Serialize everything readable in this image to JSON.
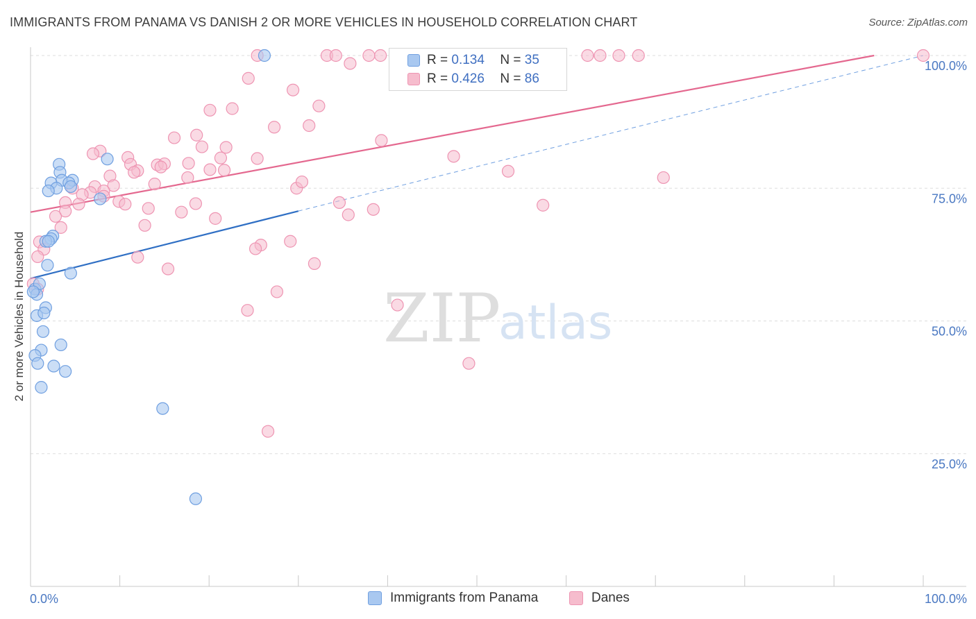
{
  "header": {
    "title": "IMMIGRANTS FROM PANAMA VS DANISH 2 OR MORE VEHICLES IN HOUSEHOLD CORRELATION CHART",
    "source": "Source: ZipAtlas.com"
  },
  "watermark": {
    "zip": "ZIP",
    "atlas": "atlas"
  },
  "legend_box": {
    "rows": [
      {
        "r_label": "R =",
        "r_value": "0.134",
        "n_label": "N =",
        "n_value": "35"
      },
      {
        "r_label": "R =",
        "r_value": "0.426",
        "n_label": "N =",
        "n_value": "86"
      }
    ]
  },
  "bottom_legend": {
    "items": [
      {
        "label": "Immigrants from Panama"
      },
      {
        "label": "Danes"
      }
    ]
  },
  "colors": {
    "blue_fill": "#a9c8f0",
    "blue_stroke": "#6f9fe0",
    "blue_line": "#2f6fc4",
    "pink_fill": "#f6bccd",
    "pink_stroke": "#ee94b2",
    "pink_line": "#e4688f",
    "grid": "#dddddd",
    "tick_text": "#4a78c2"
  },
  "chart_data": {
    "type": "scatter",
    "title": "IMMIGRANTS FROM PANAMA VS DANISH 2 OR MORE VEHICLES IN HOUSEHOLD CORRELATION CHART",
    "xlabel": "",
    "ylabel": "2 or more Vehicles in Household",
    "xlim": [
      0,
      100
    ],
    "ylim": [
      0,
      100
    ],
    "x_tick_labels": [
      "0.0%",
      "100.0%"
    ],
    "y_tick_values": [
      25,
      50,
      75,
      100
    ],
    "y_tick_labels": [
      "25.0%",
      "50.0%",
      "75.0%",
      "100.0%"
    ],
    "grid": true,
    "series": [
      {
        "name": "Immigrants from Panama",
        "color": "#a9c8f0",
        "r": 0.134,
        "n": 35,
        "trend": {
          "x0": 0,
          "y0": 58.0,
          "x1": 30,
          "y1": 70.7,
          "dashed_to_x": 100,
          "dashed_to_y": 100
        },
        "points": [
          [
            26.2,
            100
          ],
          [
            8.6,
            80.5
          ],
          [
            3.2,
            79.5
          ],
          [
            3.3,
            78
          ],
          [
            3.5,
            76.5
          ],
          [
            4.7,
            76.5
          ],
          [
            2.3,
            76.0
          ],
          [
            4.3,
            76.0
          ],
          [
            2.9,
            75.0
          ],
          [
            2.0,
            74.5
          ],
          [
            4.5,
            75.3
          ],
          [
            7.8,
            73.0
          ],
          [
            2.5,
            66.0
          ],
          [
            2.3,
            65.5
          ],
          [
            1.7,
            65.0
          ],
          [
            2.0,
            65.0
          ],
          [
            1.9,
            60.5
          ],
          [
            4.5,
            59.0
          ],
          [
            0.5,
            56.0
          ],
          [
            0.7,
            55.0
          ],
          [
            1.0,
            57.0
          ],
          [
            1.7,
            52.5
          ],
          [
            0.7,
            51.0
          ],
          [
            1.5,
            51.5
          ],
          [
            1.4,
            48.0
          ],
          [
            3.4,
            45.5
          ],
          [
            1.2,
            44.5
          ],
          [
            0.5,
            43.5
          ],
          [
            0.8,
            42.0
          ],
          [
            2.6,
            41.5
          ],
          [
            3.9,
            40.5
          ],
          [
            1.2,
            37.5
          ],
          [
            14.8,
            33.5
          ],
          [
            18.5,
            16.5
          ],
          [
            0.3,
            55.5
          ]
        ]
      },
      {
        "name": "Danes",
        "color": "#f6bccd",
        "r": 0.426,
        "n": 86,
        "trend": {
          "x0": 0,
          "y0": 70.5,
          "x1": 94.5,
          "y1": 100
        },
        "points": [
          [
            25.4,
            100
          ],
          [
            33.2,
            100
          ],
          [
            34.2,
            100
          ],
          [
            37.9,
            100
          ],
          [
            39.2,
            100
          ],
          [
            52.2,
            100
          ],
          [
            52.5,
            100
          ],
          [
            62.4,
            100
          ],
          [
            63.8,
            100
          ],
          [
            65.9,
            100
          ],
          [
            68.1,
            100
          ],
          [
            100,
            100
          ],
          [
            35.8,
            98.5
          ],
          [
            24.4,
            95.7
          ],
          [
            29.4,
            93.5
          ],
          [
            32.3,
            90.5
          ],
          [
            22.6,
            90.0
          ],
          [
            20.1,
            89.7
          ],
          [
            31.2,
            86.8
          ],
          [
            27.3,
            86.5
          ],
          [
            18.6,
            85.0
          ],
          [
            16.1,
            84.5
          ],
          [
            39.3,
            84.0
          ],
          [
            19.2,
            82.8
          ],
          [
            21.9,
            82.7
          ],
          [
            7.8,
            82.0
          ],
          [
            7.0,
            81.5
          ],
          [
            10.9,
            80.8
          ],
          [
            21.3,
            80.7
          ],
          [
            25.4,
            80.6
          ],
          [
            47.4,
            81.0
          ],
          [
            11.2,
            79.5
          ],
          [
            14.2,
            79.4
          ],
          [
            15.0,
            79.6
          ],
          [
            17.7,
            79.7
          ],
          [
            14.6,
            79.0
          ],
          [
            20.1,
            78.5
          ],
          [
            21.7,
            78.4
          ],
          [
            12.0,
            78.3
          ],
          [
            11.6,
            78.0
          ],
          [
            53.5,
            78.2
          ],
          [
            8.9,
            77.3
          ],
          [
            17.6,
            77.0
          ],
          [
            70.9,
            77.0
          ],
          [
            13.9,
            75.8
          ],
          [
            9.3,
            75.5
          ],
          [
            7.2,
            75.3
          ],
          [
            4.7,
            75.0
          ],
          [
            29.8,
            75.0
          ],
          [
            30.4,
            76.2
          ],
          [
            8.2,
            74.5
          ],
          [
            6.7,
            74.2
          ],
          [
            5.8,
            73.8
          ],
          [
            3.9,
            72.3
          ],
          [
            5.4,
            72.0
          ],
          [
            9.9,
            72.5
          ],
          [
            10.6,
            72.0
          ],
          [
            18.5,
            72.1
          ],
          [
            8.2,
            73.5
          ],
          [
            34.6,
            72.3
          ],
          [
            57.4,
            71.8
          ],
          [
            13.2,
            71.2
          ],
          [
            3.9,
            70.7
          ],
          [
            38.4,
            71.0
          ],
          [
            16.9,
            70.5
          ],
          [
            2.8,
            69.7
          ],
          [
            35.6,
            70.0
          ],
          [
            20.7,
            69.3
          ],
          [
            3.4,
            67.6
          ],
          [
            12.8,
            68.0
          ],
          [
            1.0,
            64.9
          ],
          [
            29.1,
            65.0
          ],
          [
            25.8,
            64.3
          ],
          [
            25.2,
            63.6
          ],
          [
            1.5,
            63.5
          ],
          [
            0.8,
            62.1
          ],
          [
            31.8,
            60.8
          ],
          [
            15.4,
            59.8
          ],
          [
            0.3,
            57.0
          ],
          [
            0.8,
            56.0
          ],
          [
            27.6,
            55.5
          ],
          [
            41.1,
            53.0
          ],
          [
            24.3,
            52.0
          ],
          [
            49.1,
            42.0
          ],
          [
            26.6,
            29.2
          ],
          [
            12.0,
            62.0
          ]
        ]
      }
    ]
  },
  "labels": {
    "y_axis": "2 or more Vehicles in Household",
    "x_left": "0.0%",
    "x_right": "100.0%"
  }
}
